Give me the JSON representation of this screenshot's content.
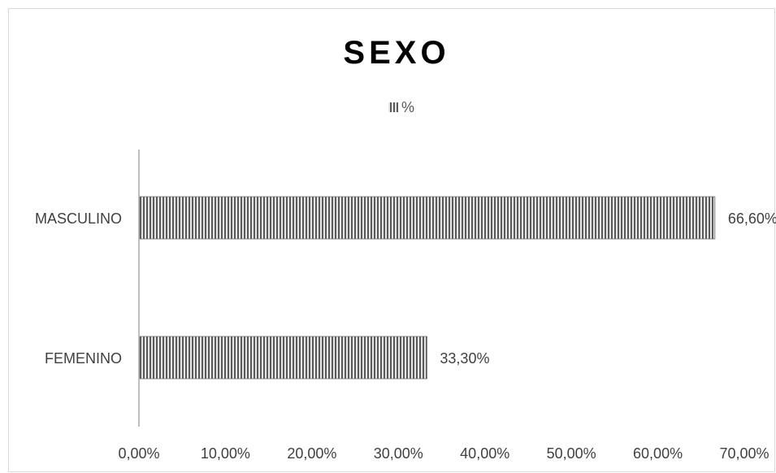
{
  "chart_data": {
    "type": "bar",
    "orientation": "horizontal",
    "title": "SEXO",
    "categories": [
      "MASCULINO",
      "FEMENINO"
    ],
    "series": [
      {
        "name": "%",
        "values": [
          0.666,
          0.333
        ]
      }
    ],
    "data_labels": [
      "66,60%",
      "33,30%"
    ],
    "xlim": [
      0,
      0.7
    ],
    "x_ticks": [
      0,
      0.1,
      0.2,
      0.3,
      0.4,
      0.5,
      0.6,
      0.7
    ],
    "x_tick_labels": [
      "0,00%",
      "10,00%",
      "20,00%",
      "30,00%",
      "40,00%",
      "50,00%",
      "60,00%",
      "70,00%"
    ],
    "legend_position": "top",
    "grid": false,
    "bar_pattern": "vertical-stripes",
    "colors": {
      "bar_dark": "#5a5a5a",
      "bar_light": "#e6e6e6",
      "axis": "#bfbfbf",
      "text": "#404040"
    }
  }
}
